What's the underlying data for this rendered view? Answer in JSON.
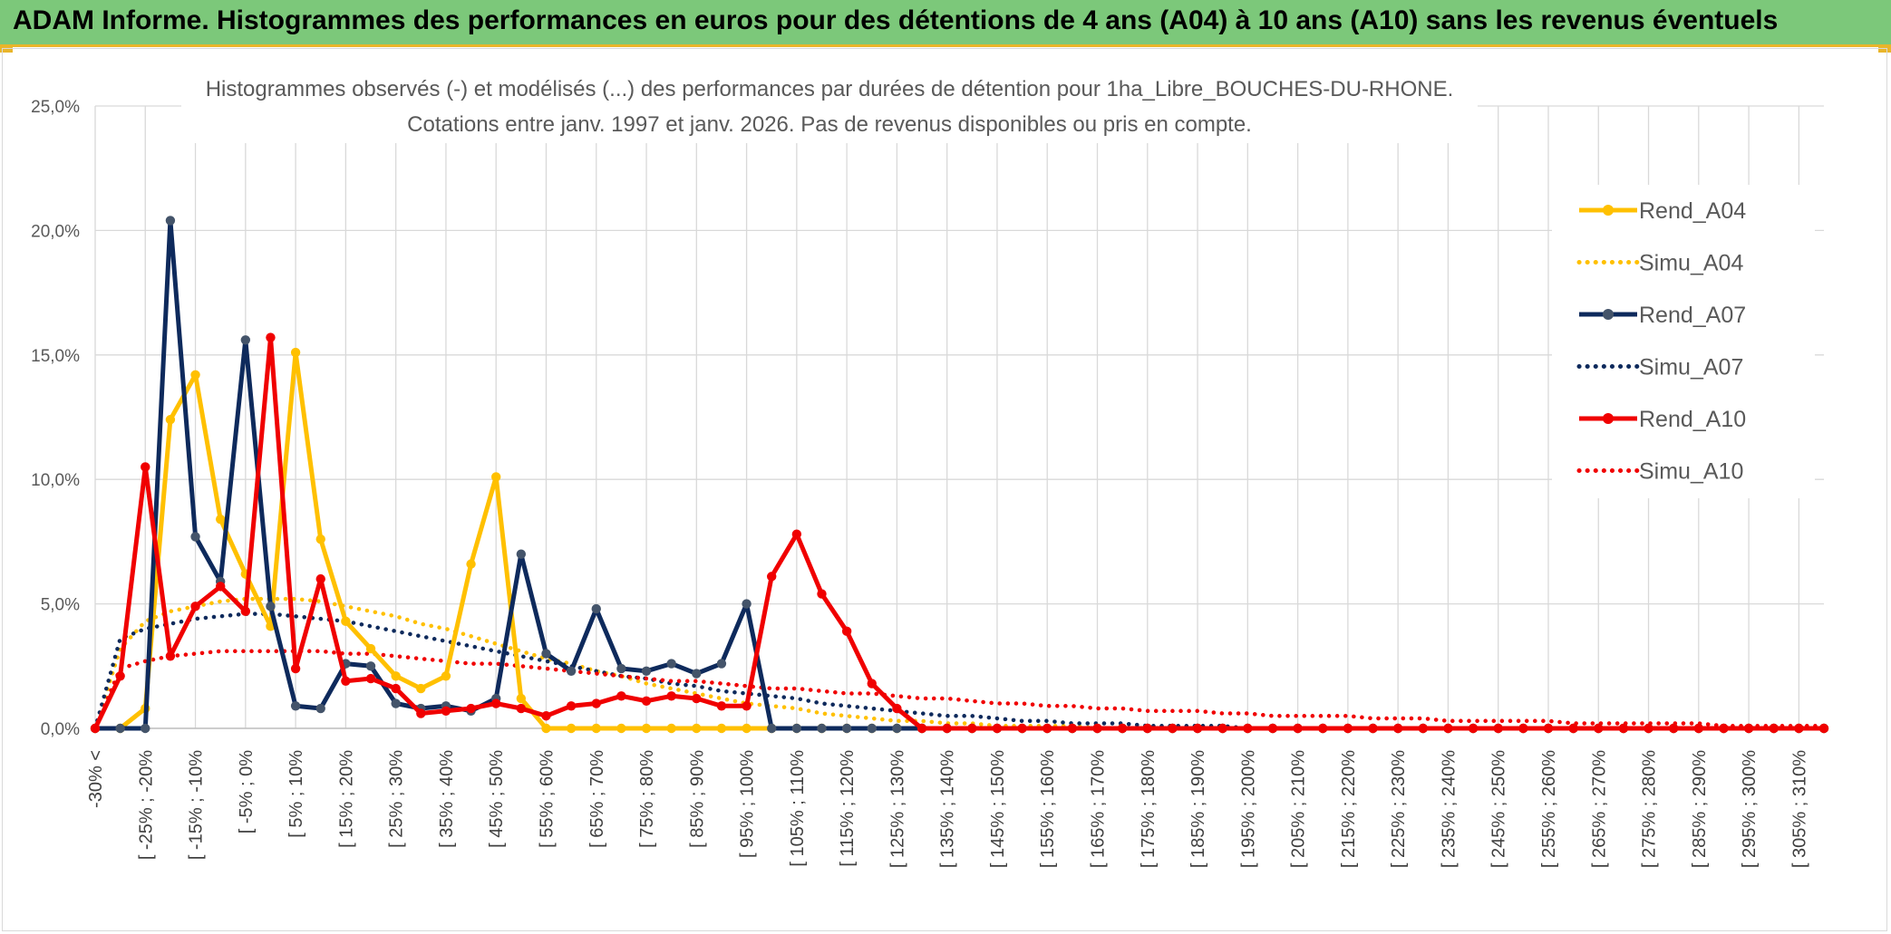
{
  "header": {
    "title": "ADAM Informe. Histogrammes des performances en euros pour des détentions de 4 ans (A04) à 10 ans (A10) sans les revenus éventuels"
  },
  "colors": {
    "header_bg": "#7cc87a",
    "accent": "#e9b52a",
    "A04": "#FFC000",
    "A07": "#0E2A5C",
    "A10": "#F00000"
  },
  "chart_data": {
    "type": "line",
    "title_line1": "Histogrammes observés (-) et modélisés (...) des performances par durées de détention pour 1ha_Libre_BOUCHES-DU-RHONE.",
    "title_line2": "Cotations entre janv. 1997 et janv. 2026. Pas de revenus disponibles ou pris en compte.",
    "xlabel": "",
    "ylabel": "",
    "ylim": [
      0,
      25
    ],
    "yticks": [
      "0,0%",
      "5,0%",
      "10,0%",
      "15,0%",
      "20,0%",
      "25,0%"
    ],
    "grid": true,
    "legend_position": "right",
    "x_tick_labels": [
      "-30% <",
      "[ -25% ; -20%",
      "[ -15% ; -10%",
      "[ -5% ; 0%",
      "[ 5% ; 10%",
      "[ 15% ; 20%",
      "[ 25% ; 30%",
      "[ 35% ; 40%",
      "[ 45% ; 50%",
      "[ 55% ; 60%",
      "[ 65% ; 70%",
      "[ 75% ; 80%",
      "[ 85% ; 90%",
      "[ 95% ; 100%",
      "[ 105% ; 110%",
      "[ 115% ; 120%",
      "[ 125% ; 130%",
      "[ 135% ; 140%",
      "[ 145% ; 150%",
      "[ 155% ; 160%",
      "[ 165% ; 170%",
      "[ 175% ; 180%",
      "[ 185% ; 190%",
      "[ 195% ; 200%",
      "[ 205% ; 210%",
      "[ 215% ; 220%",
      "[ 225% ; 230%",
      "[ 235% ; 240%",
      "[ 245% ; 250%",
      "[ 255% ; 260%",
      "[ 265% ; 270%",
      "[ 275% ; 280%",
      "[ 285% ; 290%",
      "[ 295% ; 300%",
      "[ 305% ; 310%"
    ],
    "series": [
      {
        "name": "Rend_A04",
        "style": "solid",
        "color": "#FFC000",
        "values": [
          0,
          0,
          0.8,
          12.4,
          14.2,
          8.4,
          6.2,
          4.1,
          15.1,
          7.6,
          4.3,
          3.2,
          2.1,
          1.6,
          2.1,
          6.6,
          10.1,
          1.2,
          0,
          0,
          0,
          0,
          0,
          0,
          0,
          0,
          0,
          0,
          0,
          0,
          0,
          0,
          0,
          0,
          0,
          0,
          0,
          0,
          0,
          0,
          0,
          0,
          0,
          0,
          0,
          0,
          0,
          0,
          0,
          0,
          0,
          0,
          0,
          0,
          0,
          0,
          0,
          0,
          0,
          0,
          0,
          0,
          0,
          0,
          0,
          0,
          0,
          0,
          0,
          0
        ]
      },
      {
        "name": "Simu_A04",
        "style": "dotted",
        "color": "#FFC000",
        "values": [
          0,
          3.2,
          4.3,
          4.7,
          4.9,
          5.1,
          5.2,
          5.2,
          5.2,
          5.1,
          4.9,
          4.7,
          4.5,
          4.2,
          4.0,
          3.7,
          3.4,
          3.1,
          2.8,
          2.6,
          2.3,
          2.1,
          1.8,
          1.6,
          1.4,
          1.2,
          1.0,
          0.9,
          0.8,
          0.6,
          0.5,
          0.4,
          0.3,
          0.3,
          0.2,
          0.2,
          0.1,
          0.1,
          0.1,
          0.1,
          0,
          0,
          0,
          0,
          0,
          0,
          0,
          0,
          0,
          0,
          0,
          0,
          0,
          0,
          0,
          0,
          0,
          0,
          0,
          0,
          0,
          0,
          0,
          0,
          0,
          0,
          0,
          0,
          0,
          0
        ]
      },
      {
        "name": "Rend_A07",
        "style": "solid",
        "color": "#0E2A5C",
        "values": [
          0,
          0,
          0,
          20.4,
          7.7,
          5.9,
          15.6,
          4.9,
          0.9,
          0.8,
          2.6,
          2.5,
          1.0,
          0.8,
          0.9,
          0.7,
          1.2,
          7.0,
          3.0,
          2.3,
          4.8,
          2.4,
          2.3,
          2.6,
          2.2,
          2.6,
          5.0,
          0,
          0,
          0,
          0,
          0,
          0,
          0,
          0,
          0,
          0,
          0,
          0,
          0,
          0,
          0,
          0,
          0,
          0,
          0,
          0,
          0,
          0,
          0,
          0,
          0,
          0,
          0,
          0,
          0,
          0,
          0,
          0,
          0,
          0,
          0,
          0,
          0,
          0,
          0,
          0,
          0,
          0,
          0
        ]
      },
      {
        "name": "Simu_A07",
        "style": "dotted",
        "color": "#0E2A5C",
        "values": [
          0,
          3.6,
          4.0,
          4.2,
          4.4,
          4.5,
          4.6,
          4.6,
          4.5,
          4.4,
          4.3,
          4.1,
          3.9,
          3.7,
          3.5,
          3.3,
          3.1,
          2.9,
          2.7,
          2.5,
          2.3,
          2.1,
          2.0,
          1.8,
          1.7,
          1.5,
          1.4,
          1.3,
          1.2,
          1.0,
          0.9,
          0.8,
          0.7,
          0.6,
          0.5,
          0.5,
          0.4,
          0.3,
          0.3,
          0.2,
          0.2,
          0.2,
          0.1,
          0.1,
          0.1,
          0.1,
          0,
          0,
          0,
          0,
          0,
          0,
          0,
          0,
          0,
          0,
          0,
          0,
          0,
          0,
          0,
          0,
          0,
          0,
          0,
          0,
          0,
          0,
          0,
          0
        ]
      },
      {
        "name": "Rend_A10",
        "style": "solid",
        "color": "#F00000",
        "values": [
          0,
          2.1,
          10.5,
          2.9,
          4.9,
          5.7,
          4.7,
          15.7,
          2.4,
          6.0,
          1.9,
          2.0,
          1.6,
          0.6,
          0.7,
          0.8,
          1.0,
          0.8,
          0.5,
          0.9,
          1.0,
          1.3,
          1.1,
          1.3,
          1.2,
          0.9,
          0.9,
          6.1,
          7.8,
          5.4,
          3.9,
          1.8,
          0.8,
          0,
          0,
          0,
          0,
          0,
          0,
          0,
          0,
          0,
          0,
          0,
          0,
          0,
          0,
          0,
          0,
          0,
          0,
          0,
          0,
          0,
          0,
          0,
          0,
          0,
          0,
          0,
          0,
          0,
          0,
          0,
          0,
          0,
          0,
          0,
          0,
          0
        ]
      },
      {
        "name": "Simu_A10",
        "style": "dotted",
        "color": "#F00000",
        "values": [
          0,
          2.4,
          2.7,
          2.9,
          3.0,
          3.1,
          3.1,
          3.1,
          3.1,
          3.1,
          3.0,
          3.0,
          2.9,
          2.8,
          2.7,
          2.6,
          2.6,
          2.5,
          2.4,
          2.3,
          2.2,
          2.1,
          2.0,
          1.9,
          1.9,
          1.8,
          1.7,
          1.6,
          1.6,
          1.5,
          1.4,
          1.4,
          1.3,
          1.2,
          1.2,
          1.1,
          1.0,
          1.0,
          0.9,
          0.9,
          0.8,
          0.8,
          0.7,
          0.7,
          0.7,
          0.6,
          0.6,
          0.5,
          0.5,
          0.5,
          0.5,
          0.4,
          0.4,
          0.4,
          0.3,
          0.3,
          0.3,
          0.3,
          0.3,
          0.2,
          0.2,
          0.2,
          0.2,
          0.2,
          0.2,
          0.1,
          0.1,
          0.1,
          0.1,
          0.1
        ]
      }
    ]
  }
}
